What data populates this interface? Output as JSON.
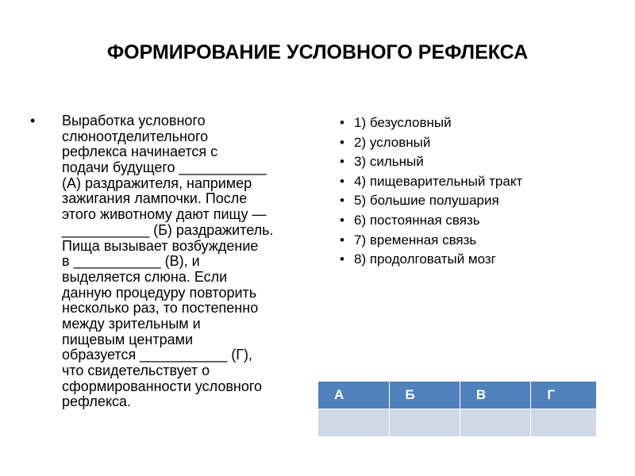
{
  "title": "ФОРМИРОВАНИЕ УСЛОВНОГО РЕФЛЕКСА",
  "left_text_lines": [
    "Выработка условного",
    "слюноотделительного",
    "рефлекса начинается с",
    "подачи будущего ___________",
    "(А) раздражителя, например",
    "зажигания лампочки. После",
    "этого животному дают пищу —",
    "___________ (Б) раздражитель.",
    "Пища вызывает возбуждение",
    "в ___________ (В), и",
    "выделяется слюна. Если",
    "данную процедуру повторить",
    "несколько раз, то постепенно",
    "между зрительным и",
    "пищевым центрами",
    "образуется ___________ (Г),",
    "что свидетельствует о",
    "сформированности условного",
    "рефлекса."
  ],
  "options": [
    "1) безусловный",
    "2) условный",
    "3) сильный",
    "4) пищеварительный тракт",
    "5) большие полушария",
    "6) постоянная связь",
    "7) временная связь",
    "8) продолговатый мозг"
  ],
  "bullet": "•",
  "answer_table": {
    "headers": [
      "А",
      "Б",
      "В",
      "Г"
    ],
    "row": [
      "",
      "",
      "",
      ""
    ]
  },
  "colors": {
    "header": "#4f81bd",
    "cell": "#d0d8e8"
  }
}
